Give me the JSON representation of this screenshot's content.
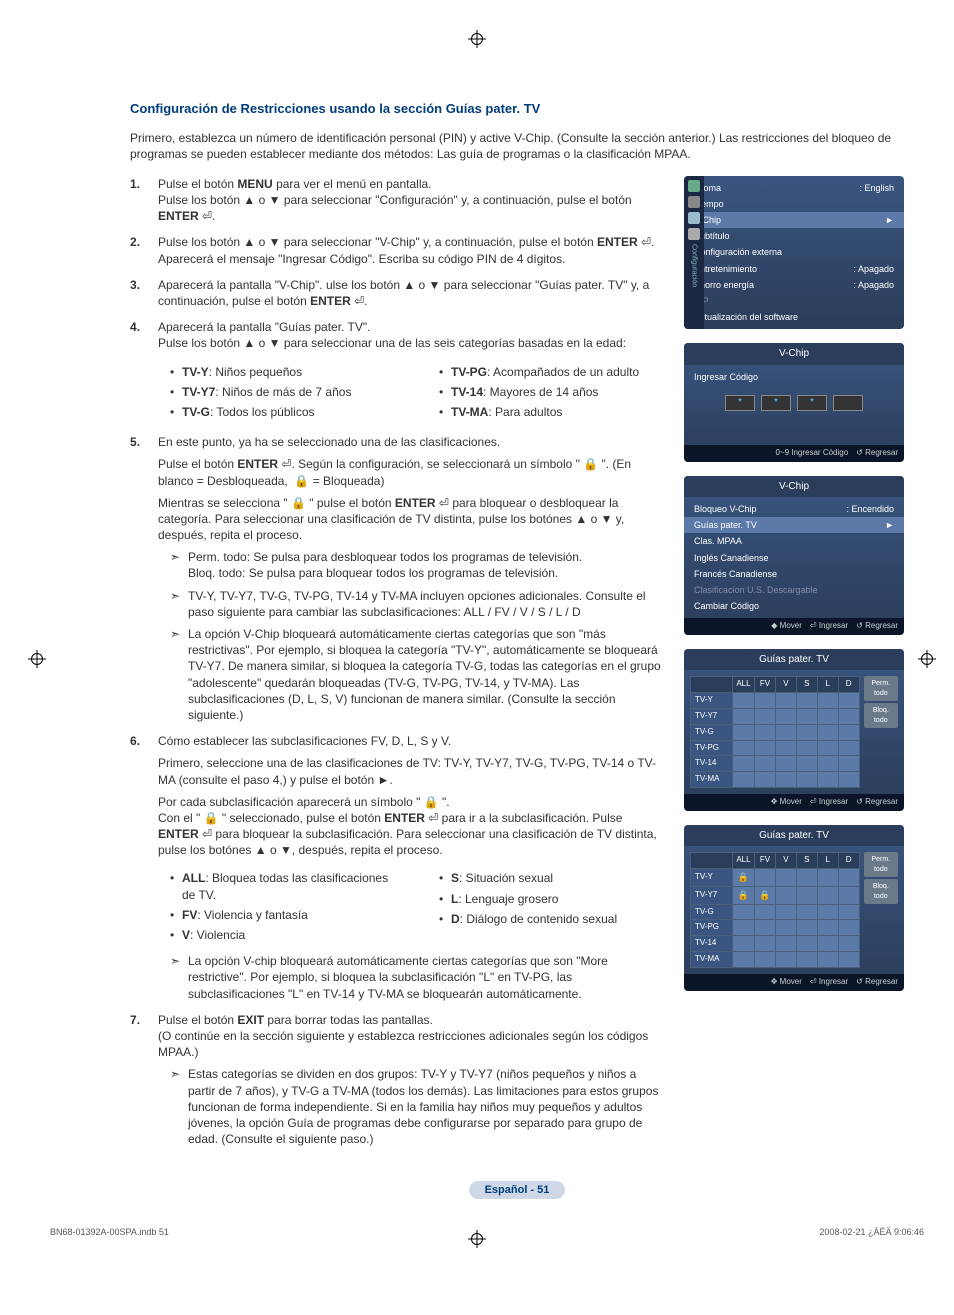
{
  "section_title": "Configuración de Restricciones usando la sección Guías pater. TV",
  "intro": "Primero, establezca un número de identificación personal (PIN) y active V-Chip. (Consulte la sección anterior.) Las restricciones del bloqueo de programas se pueden establecer mediante dos métodos: Las guía de programas o la clasificación MPAA.",
  "steps": {
    "s1": "Pulse el botón MENU para ver el menú en pantalla.\nPulse los botón ▲ o ▼ para seleccionar \"Configuración\" y, a continuación, pulse el botón ENTER ⏎.",
    "s2": "Pulse los botón ▲ o ▼ para seleccionar \"V-Chip\" y, a continuación, pulse el botón ENTER ⏎.\nAparecerá el mensaje \"Ingresar Código\". Escriba su código PIN de 4 dígitos.",
    "s3": "Aparecerá la pantalla \"V-Chip\". ulse los botón ▲ o ▼ para seleccionar \"Guías pater. TV\" y, a continuación, pulse el botón ENTER ⏎.",
    "s4": "Aparecerá la pantalla \"Guías pater. TV\".\nPulse los botón ▲ o ▼ para seleccionar una de las seis categorías basadas en la edad:",
    "s5_a": "En este punto, ya ha se seleccionado una de las clasificaciones.",
    "s5_b": "Pulse el botón ENTER ⏎. Según la configuración, se seleccionará un símbolo \" 🔒 \". (En blanco = Desbloqueada, 🔒 = Bloqueada)",
    "s5_c": "Mientras se selecciona \" 🔒 \" pulse el botón ENTER ⏎ para bloquear o desbloquear la categoría. Para seleccionar una clasificación de TV distinta, pulse los botónes ▲ o ▼ y, después, repita el proceso.",
    "s5_arr1": "Perm. todo: Se pulsa para desbloquear todos los programas de televisión.\nBloq. todo: Se pulsa para bloquear todos los programas de televisión.",
    "s5_arr2": "TV-Y, TV-Y7, TV-G, TV-PG, TV-14 y TV-MA incluyen opciones adicionales. Consulte el paso siguiente para cambiar las subclasificaciones: ALL / FV / V / S / L / D",
    "s5_arr3": "La opción V-Chip bloqueará automáticamente ciertas categorías que son \"más restrictivas\". Por ejemplo, si bloquea la categoría \"TV-Y\", automáticamente se bloqueará TV-Y7. De manera similar, si bloquea la categoría TV-G, todas las categorías en el grupo \"adolescente\" quedarán bloqueadas (TV-G, TV-PG, TV-14, y TV-MA). Las subclasificaciones (D, L, S, V) funcionan de manera similar. (Consulte la sección siguiente.)",
    "s6_a": "Cómo establecer las subclasificaciones FV, D, L, S y V.",
    "s6_b": "Primero, seleccione una de las clasificaciones de TV: TV-Y, TV-Y7, TV-G, TV-PG, TV-14 o TV-MA (consulte el paso 4,) y pulse el botón ►.",
    "s6_c": "Por cada subclasificación aparecerá un símbolo \" 🔒 \".\nCon el \" 🔒 \" seleccionado, pulse el botón ENTER ⏎ para ir a la subclasificación. Pulse ENTER ⏎ para bloquear la subclasificación. Para seleccionar una clasificación de TV distinta, pulse los botónes ▲ o ▼, después, repita el proceso.",
    "s6_arr1": "La opción V-chip bloqueará automáticamente ciertas categorías que son \"More restrictive\". Por ejemplo, si bloquea la subclasificación \"L\" en TV-PG, las subclasificaciones \"L\" en TV-14 y TV-MA se bloquearán automáticamente.",
    "s7_a": "Pulse el botón EXIT para borrar todas las pantallas.\n(O continúe en la sección siguiente y establezca restricciones adicionales según los códigos MPAA.)",
    "s7_arr1": "Estas categorías se dividen en dos grupos: TV-Y y TV-Y7 (niños pequeños y niños a partir de 7 años), y TV-G a TV-MA (todos los demás). Las limitaciones para estos grupos funcionan de forma independiente. Si en la familia hay niños muy pequeños y adultos jóvenes, la opción Guía de programas debe configurarse por separado para grupo de edad. (Consulte el siguiente paso.)"
  },
  "ratings_left": [
    {
      "b": "TV-Y",
      "t": ": Niños pequeños"
    },
    {
      "b": "TV-Y7",
      "t": ": Niños de más de 7 años"
    },
    {
      "b": "TV-G",
      "t": ": Todos los públicos"
    }
  ],
  "ratings_right": [
    {
      "b": "TV-PG",
      "t": ": Acompañados de un adulto"
    },
    {
      "b": "TV-14",
      "t": ": Mayores de 14 años"
    },
    {
      "b": "TV-MA",
      "t": ": Para adultos"
    }
  ],
  "subclass_left": [
    {
      "b": "ALL",
      "t": ": Bloquea todas las clasificaciones de TV."
    },
    {
      "b": "FV",
      "t": ": Violencia y fantasía"
    },
    {
      "b": "V",
      "t": ": Violencia"
    }
  ],
  "subclass_right": [
    {
      "b": "S",
      "t": ": Situación sexual"
    },
    {
      "b": "L",
      "t": ": Lenguaje grosero"
    },
    {
      "b": "D",
      "t": ": Diálogo de contenido sexual"
    }
  ],
  "panel1": {
    "sidebar": "Configuración",
    "items": [
      {
        "l": "Idioma",
        "r": ": English"
      },
      {
        "l": "Tiempo",
        "r": ""
      },
      {
        "l": "V-Chip",
        "r": "►",
        "sel": true
      },
      {
        "l": "Subtítulo",
        "r": ""
      },
      {
        "l": "Configuración externa",
        "r": ""
      },
      {
        "l": "Entretenimiento",
        "r": ": Apagado"
      },
      {
        "l": "Ahorro energía",
        "r": ": Apagado"
      },
      {
        "l": "PIP",
        "r": "",
        "dim": true
      },
      {
        "l": "Actualización del software",
        "r": ""
      }
    ]
  },
  "panel2": {
    "title": "V-Chip",
    "label": "Ingresar Código",
    "hint1": "0~9 Ingresar Código",
    "hint2": "↺ Regresar"
  },
  "panel3": {
    "title": "V-Chip",
    "items": [
      {
        "l": "Bloqueo V-Chip",
        "r": ": Encendido"
      },
      {
        "l": "Guías pater. TV",
        "r": "►",
        "sel": true
      },
      {
        "l": "Clas. MPAA",
        "r": ""
      },
      {
        "l": "Inglés Canadiense",
        "r": ""
      },
      {
        "l": "Francés Canadiense",
        "r": ""
      },
      {
        "l": "Clasificacion U.S. Descargable",
        "r": "",
        "dim": true
      },
      {
        "l": "Cambiar Código",
        "r": ""
      }
    ],
    "hint1": "◆ Mover",
    "hint2": "⏎ Ingresar",
    "hint3": "↺ Regresar"
  },
  "panel4": {
    "title": "Guías pater. TV",
    "cols": [
      "ALL",
      "FV",
      "V",
      "S",
      "L",
      "D"
    ],
    "rows": [
      "TV-Y",
      "TV-Y7",
      "TV-G",
      "TV-PG",
      "TV-14",
      "TV-MA"
    ],
    "btn1": "Perm. todo",
    "btn2": "Bloq. todo",
    "hint1": "✥ Mover",
    "hint2": "⏎ Ingresar",
    "hint3": "↺ Regresar"
  },
  "panel5": {
    "title": "Guías pater. TV",
    "cols": [
      "ALL",
      "FV",
      "V",
      "S",
      "L",
      "D"
    ],
    "rows": [
      "TV-Y",
      "TV-Y7",
      "TV-G",
      "TV-PG",
      "TV-14",
      "TV-MA"
    ],
    "btn1": "Perm. todo",
    "btn2": "Bloq. todo",
    "locks": {
      "0": [
        0
      ],
      "1": [
        0,
        1
      ]
    },
    "hint1": "✥ Mover",
    "hint2": "⏎ Ingresar",
    "hint3": "↺ Regresar"
  },
  "page_badge": "Español - 51",
  "footer_left": "BN68-01392A-00SPA.indb   51",
  "footer_right": "2008-02-21   ¿ÀÈÄ 9:06:46"
}
